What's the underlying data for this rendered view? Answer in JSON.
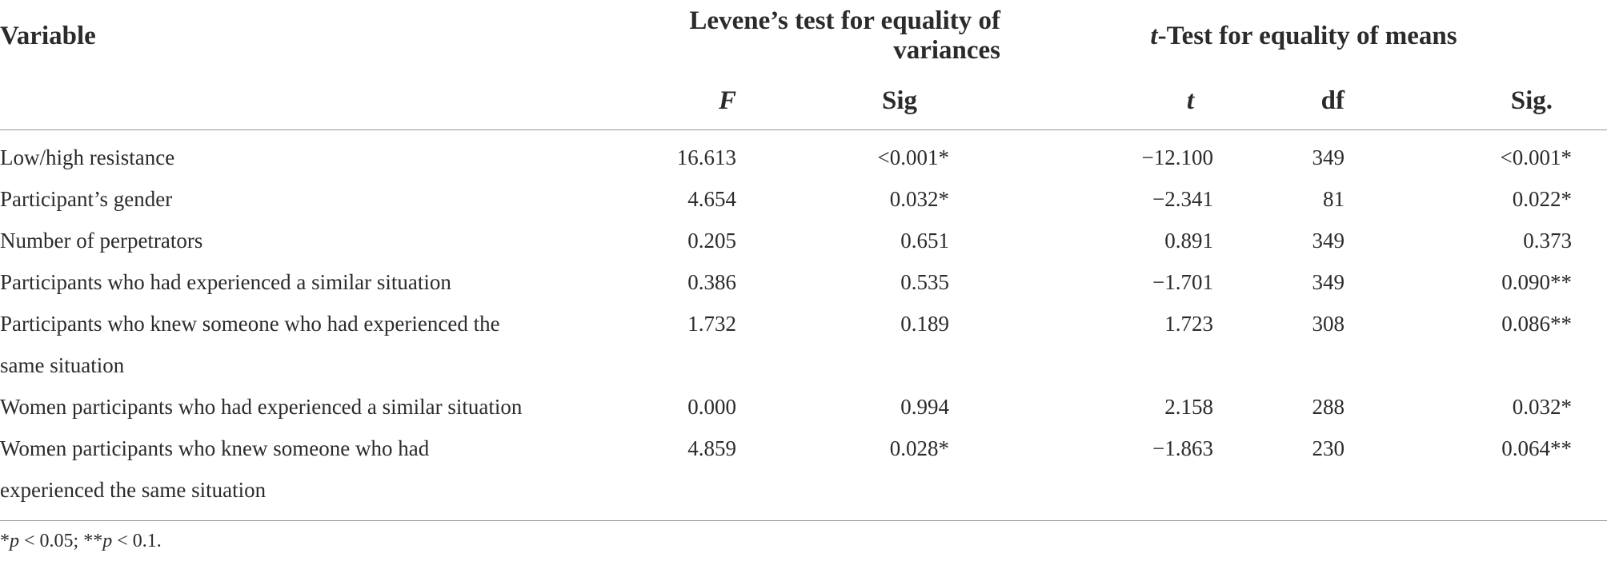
{
  "headers": {
    "variable": "Variable",
    "levene": "Levene’s test for equality of variances",
    "ttest_italic": "t",
    "ttest_rest": "-Test for equality of means",
    "f": "F",
    "sig": "Sig",
    "t": "t",
    "df": "df",
    "sig2": "Sig."
  },
  "rows": [
    {
      "variable": "Low/high resistance",
      "f": "16.613",
      "sig": "<0.001*",
      "t": "−12.100",
      "df": "349",
      "sig2": "<0.001*"
    },
    {
      "variable": "Participant’s gender",
      "f": "4.654",
      "sig": "0.032*",
      "t": "−2.341",
      "df": "81",
      "sig2": "0.022*"
    },
    {
      "variable": "Number of perpetrators",
      "f": "0.205",
      "sig": "0.651",
      "t": "0.891",
      "df": "349",
      "sig2": "0.373"
    },
    {
      "variable": "Participants who had experienced a similar situation",
      "f": "0.386",
      "sig": "0.535",
      "t": "−1.701",
      "df": "349",
      "sig2": "0.090**"
    },
    {
      "variable_line1": "Participants who knew someone who had experienced the",
      "variable_line2": "same situation",
      "f": "1.732",
      "sig": "0.189",
      "t": "1.723",
      "df": "308",
      "sig2": "0.086**"
    },
    {
      "variable": "Women participants who had experienced a similar situation",
      "f": "0.000",
      "sig": "0.994",
      "t": "2.158",
      "df": "288",
      "sig2": "0.032*"
    },
    {
      "variable_line1": "Women participants who knew someone who had",
      "variable_line2": "experienced the same situation",
      "f": "4.859",
      "sig": "0.028*",
      "t": "−1.863",
      "df": "230",
      "sig2": "0.064**"
    }
  ],
  "footnote": {
    "star1": "*",
    "p1": "p",
    "text1": " < 0.05; **",
    "p2": "p",
    "text2": " < 0.1."
  }
}
